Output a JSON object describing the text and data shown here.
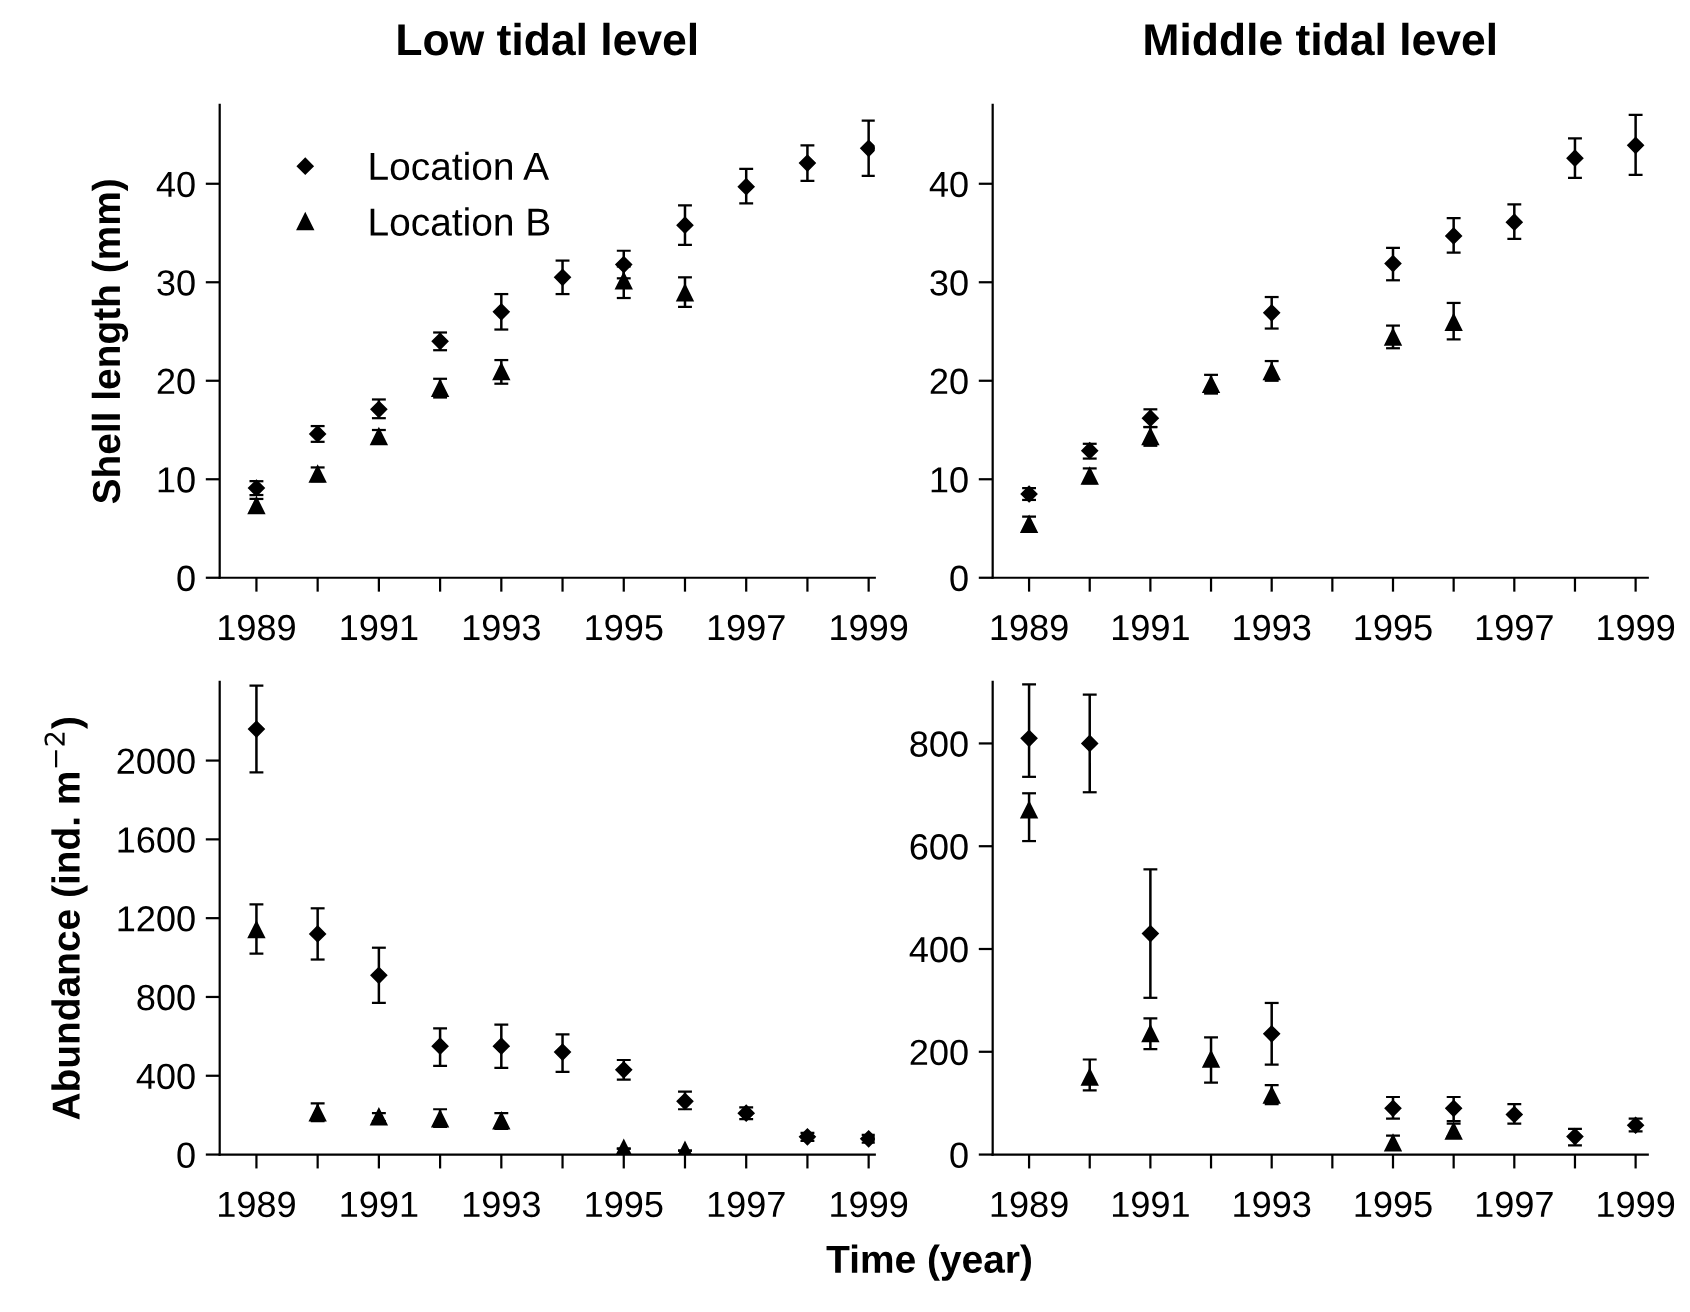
{
  "chart_data": [
    {
      "type": "scatter",
      "title": "Low tidal level",
      "ylabel": "Shell length (mm)",
      "x": [
        1989,
        1990,
        1991,
        1992,
        1993,
        1994,
        1995,
        1996,
        1997,
        1998,
        1999
      ],
      "series": [
        {
          "name": "Location A",
          "color": "#000000",
          "marker": "diamond",
          "values": [
            9.1,
            14.6,
            17.1,
            24,
            27,
            30.5,
            31.8,
            35.8,
            39.7,
            42.1,
            43.6
          ],
          "errors": [
            [
              8.4,
              9.8
            ],
            [
              13.8,
              15.4
            ],
            [
              16.2,
              18.1
            ],
            [
              23.1,
              24.9
            ],
            [
              25.2,
              28.8
            ],
            [
              28.8,
              32.2
            ],
            [
              30.4,
              33.2
            ],
            [
              33.8,
              37.8
            ],
            [
              38,
              41.5
            ],
            [
              40.3,
              43.9
            ],
            [
              40.8,
              46.4
            ]
          ]
        },
        {
          "name": "Location B",
          "color": "#000000",
          "marker": "triangle",
          "values": [
            7.3,
            10.5,
            14.3,
            19.2,
            20.9,
            null,
            30.1,
            28.9,
            null,
            null,
            null
          ],
          "errors": [
            [
              6.6,
              8.0
            ],
            [
              9.8,
              11.2
            ],
            [
              13.7,
              15
            ],
            [
              18.3,
              20.2
            ],
            [
              19.7,
              22.1
            ],
            null,
            [
              28.4,
              31.6
            ],
            [
              27.5,
              30.5
            ],
            null,
            null,
            null
          ]
        }
      ],
      "xlim": [
        1988.4,
        1999.1
      ],
      "ylim": [
        0,
        48
      ],
      "yticks": [
        0,
        10,
        20,
        30,
        40
      ],
      "xticks": [
        1989,
        {
          "value": 1990,
          "label": null
        },
        1991,
        {
          "value": 1992,
          "label": null
        },
        1993,
        {
          "value": 1994,
          "label": null
        },
        1995,
        {
          "value": 1996,
          "label": null
        },
        1997,
        {
          "value": 1998,
          "label": null
        },
        1999
      ],
      "legend": "top left",
      "grid": false
    },
    {
      "type": "scatter",
      "title": "Middle tidal level",
      "x": [
        1989,
        1990,
        1991,
        1992,
        1993,
        1994,
        1995,
        1996,
        1997,
        1998,
        1999
      ],
      "series": [
        {
          "color": "#000000",
          "marker": "diamond",
          "values": [
            8.5,
            12.9,
            16.2,
            null,
            26.9,
            null,
            31.9,
            34.7,
            36.1,
            42.6,
            43.9
          ],
          "errors": [
            [
              7.9,
              9.1
            ],
            [
              12.1,
              13.6
            ],
            [
              15.3,
              17.1
            ],
            null,
            [
              25.3,
              28.5
            ],
            null,
            [
              30.2,
              33.5
            ],
            [
              33,
              36.5
            ],
            [
              34.4,
              37.9
            ],
            [
              40.6,
              44.6
            ],
            [
              40.9,
              47
            ]
          ]
        },
        {
          "color": "#000000",
          "marker": "triangle",
          "values": [
            5.4,
            10.3,
            14.3,
            19.6,
            20.9,
            null,
            24.4,
            25.9,
            null,
            null,
            null
          ],
          "errors": [
            [
              4.7,
              6.2
            ],
            [
              9.6,
              11.1
            ],
            [
              13.4,
              15.3
            ],
            [
              18.7,
              20.6
            ],
            [
              20,
              22
            ],
            null,
            [
              23.3,
              25.6
            ],
            [
              24.2,
              27.9
            ],
            null,
            null,
            null
          ]
        }
      ],
      "xlim": [
        1988.4,
        1999.2
      ],
      "ylim": [
        0,
        48
      ],
      "yticks": [
        0,
        10,
        20,
        30,
        40
      ],
      "xticks": [
        1989,
        {
          "value": 1990,
          "label": null
        },
        1991,
        {
          "value": 1992,
          "label": null
        },
        1993,
        {
          "value": 1994,
          "label": null
        },
        1995,
        {
          "value": 1996,
          "label": null
        },
        1997,
        {
          "value": 1998,
          "label": null
        },
        1999
      ],
      "grid": false
    },
    {
      "type": "scatter",
      "ylabel": "Abundance (ind. m$^{−2}$)",
      "xlabel": "Time (year)",
      "x": [
        1989,
        1990,
        1991,
        1992,
        1993,
        1994,
        1995,
        1996,
        1997,
        1998,
        1999
      ],
      "series": [
        {
          "color": "#000000",
          "marker": "diamond",
          "values": [
            2160,
            1120,
            910,
            550,
            550,
            520,
            430,
            270,
            210,
            90,
            80
          ],
          "errors": [
            [
              1940,
              2380
            ],
            [
              990,
              1250
            ],
            [
              770,
              1050
            ],
            [
              450,
              640
            ],
            [
              440,
              660
            ],
            [
              420,
              610
            ],
            [
              380,
              480
            ],
            [
              230,
              320
            ],
            [
              180,
              240
            ],
            [
              70,
              110
            ],
            [
              60,
              100
            ]
          ]
        },
        {
          "color": "#000000",
          "marker": "triangle",
          "values": [
            1140,
            210,
            190,
            180,
            170,
            null,
            30,
            20,
            null,
            null,
            null
          ],
          "errors": [
            [
              1020,
              1270
            ],
            [
              170,
              260
            ],
            [
              170,
              210
            ],
            [
              140,
              230
            ],
            [
              130,
              210
            ],
            null,
            null,
            null,
            null,
            null,
            null
          ]
        }
      ],
      "xlim": [
        1988.4,
        1999.1
      ],
      "ylim": [
        0,
        2400
      ],
      "yticks": [
        0,
        400,
        800,
        1200,
        1600,
        2000
      ],
      "xticks": [
        1989,
        {
          "value": 1990,
          "label": null
        },
        1991,
        {
          "value": 1992,
          "label": null
        },
        1993,
        {
          "value": 1994,
          "label": null
        },
        1995,
        {
          "value": 1996,
          "label": null
        },
        1997,
        {
          "value": 1998,
          "label": null
        },
        1999
      ],
      "grid": false
    },
    {
      "type": "scatter",
      "x": [
        1989,
        1990,
        1991,
        1992,
        1993,
        1994,
        1995,
        1996,
        1997,
        1998,
        1999
      ],
      "series": [
        {
          "color": "#000000",
          "marker": "diamond",
          "values": [
            810,
            800,
            430,
            null,
            235,
            null,
            90,
            90,
            78,
            35,
            57
          ],
          "errors": [
            [
              735,
              915
            ],
            [
              705,
              895
            ],
            [
              305,
              555
            ],
            null,
            [
              175,
              295
            ],
            null,
            [
              70,
              112
            ],
            [
              65,
              112
            ],
            [
              60,
              98
            ],
            [
              18,
              50
            ],
            [
              45,
              70
            ]
          ]
        },
        {
          "color": "#000000",
          "marker": "triangle",
          "values": [
            670,
            150,
            235,
            185,
            115,
            null,
            22,
            45,
            null,
            null,
            null
          ],
          "errors": [
            [
              610,
              703
            ],
            [
              125,
              185
            ],
            [
              205,
              265
            ],
            [
              140,
              228
            ],
            [
              98,
              135
            ],
            null,
            [
              12,
              37
            ],
            [
              35,
              60
            ],
            null,
            null,
            null
          ]
        }
      ],
      "xlim": [
        1988.4,
        1999.2
      ],
      "ylim": [
        0,
        920
      ],
      "yticks": [
        0,
        200,
        400,
        600,
        800
      ],
      "xticks": [
        1989,
        {
          "value": 1990,
          "label": null
        },
        1991,
        {
          "value": 1992,
          "label": null
        },
        1993,
        {
          "value": 1994,
          "label": null
        },
        1995,
        {
          "value": 1996,
          "label": null
        },
        1997,
        {
          "value": 1998,
          "label": null
        },
        1999
      ],
      "grid": false
    }
  ]
}
